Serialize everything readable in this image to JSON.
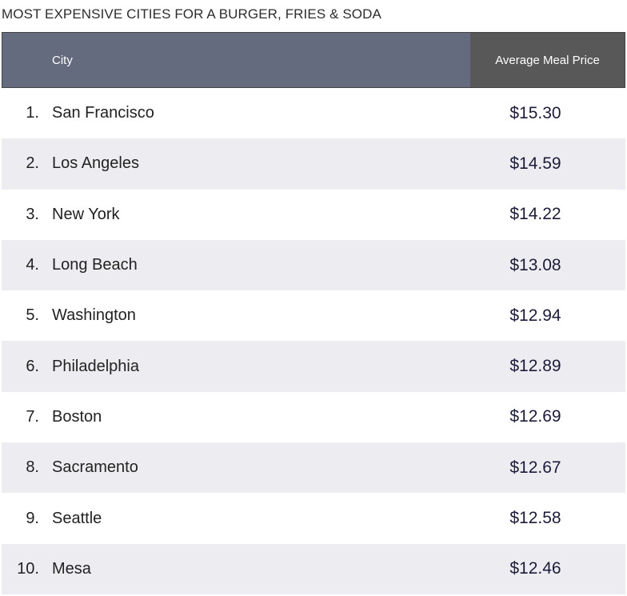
{
  "chart_data": {
    "type": "table",
    "title": "MOST EXPENSIVE CITIES FOR A BURGER, FRIES & SODA",
    "columns": [
      "City",
      "Average Meal Price"
    ],
    "rows": [
      {
        "rank": "1.",
        "city": "San Francisco",
        "price": "$15.30",
        "value": 15.3
      },
      {
        "rank": "2.",
        "city": "Los Angeles",
        "price": "$14.59",
        "value": 14.59
      },
      {
        "rank": "3.",
        "city": "New York",
        "price": "$14.22",
        "value": 14.22
      },
      {
        "rank": "4.",
        "city": "Long Beach",
        "price": "$13.08",
        "value": 13.08
      },
      {
        "rank": "5.",
        "city": "Washington",
        "price": "$12.94",
        "value": 12.94
      },
      {
        "rank": "6.",
        "city": "Philadelphia",
        "price": "$12.89",
        "value": 12.89
      },
      {
        "rank": "7.",
        "city": "Boston",
        "price": "$12.69",
        "value": 12.69
      },
      {
        "rank": "8.",
        "city": "Sacramento",
        "price": "$12.67",
        "value": 12.67
      },
      {
        "rank": "9.",
        "city": "Seattle",
        "price": "$12.58",
        "value": 12.58
      },
      {
        "rank": "10.",
        "city": "Mesa",
        "price": "$12.46",
        "value": 12.46
      }
    ]
  },
  "colors": {
    "header_city_bg": "#646b7e",
    "header_price_bg": "#585858",
    "row_alt_bg": "#ededf1"
  }
}
